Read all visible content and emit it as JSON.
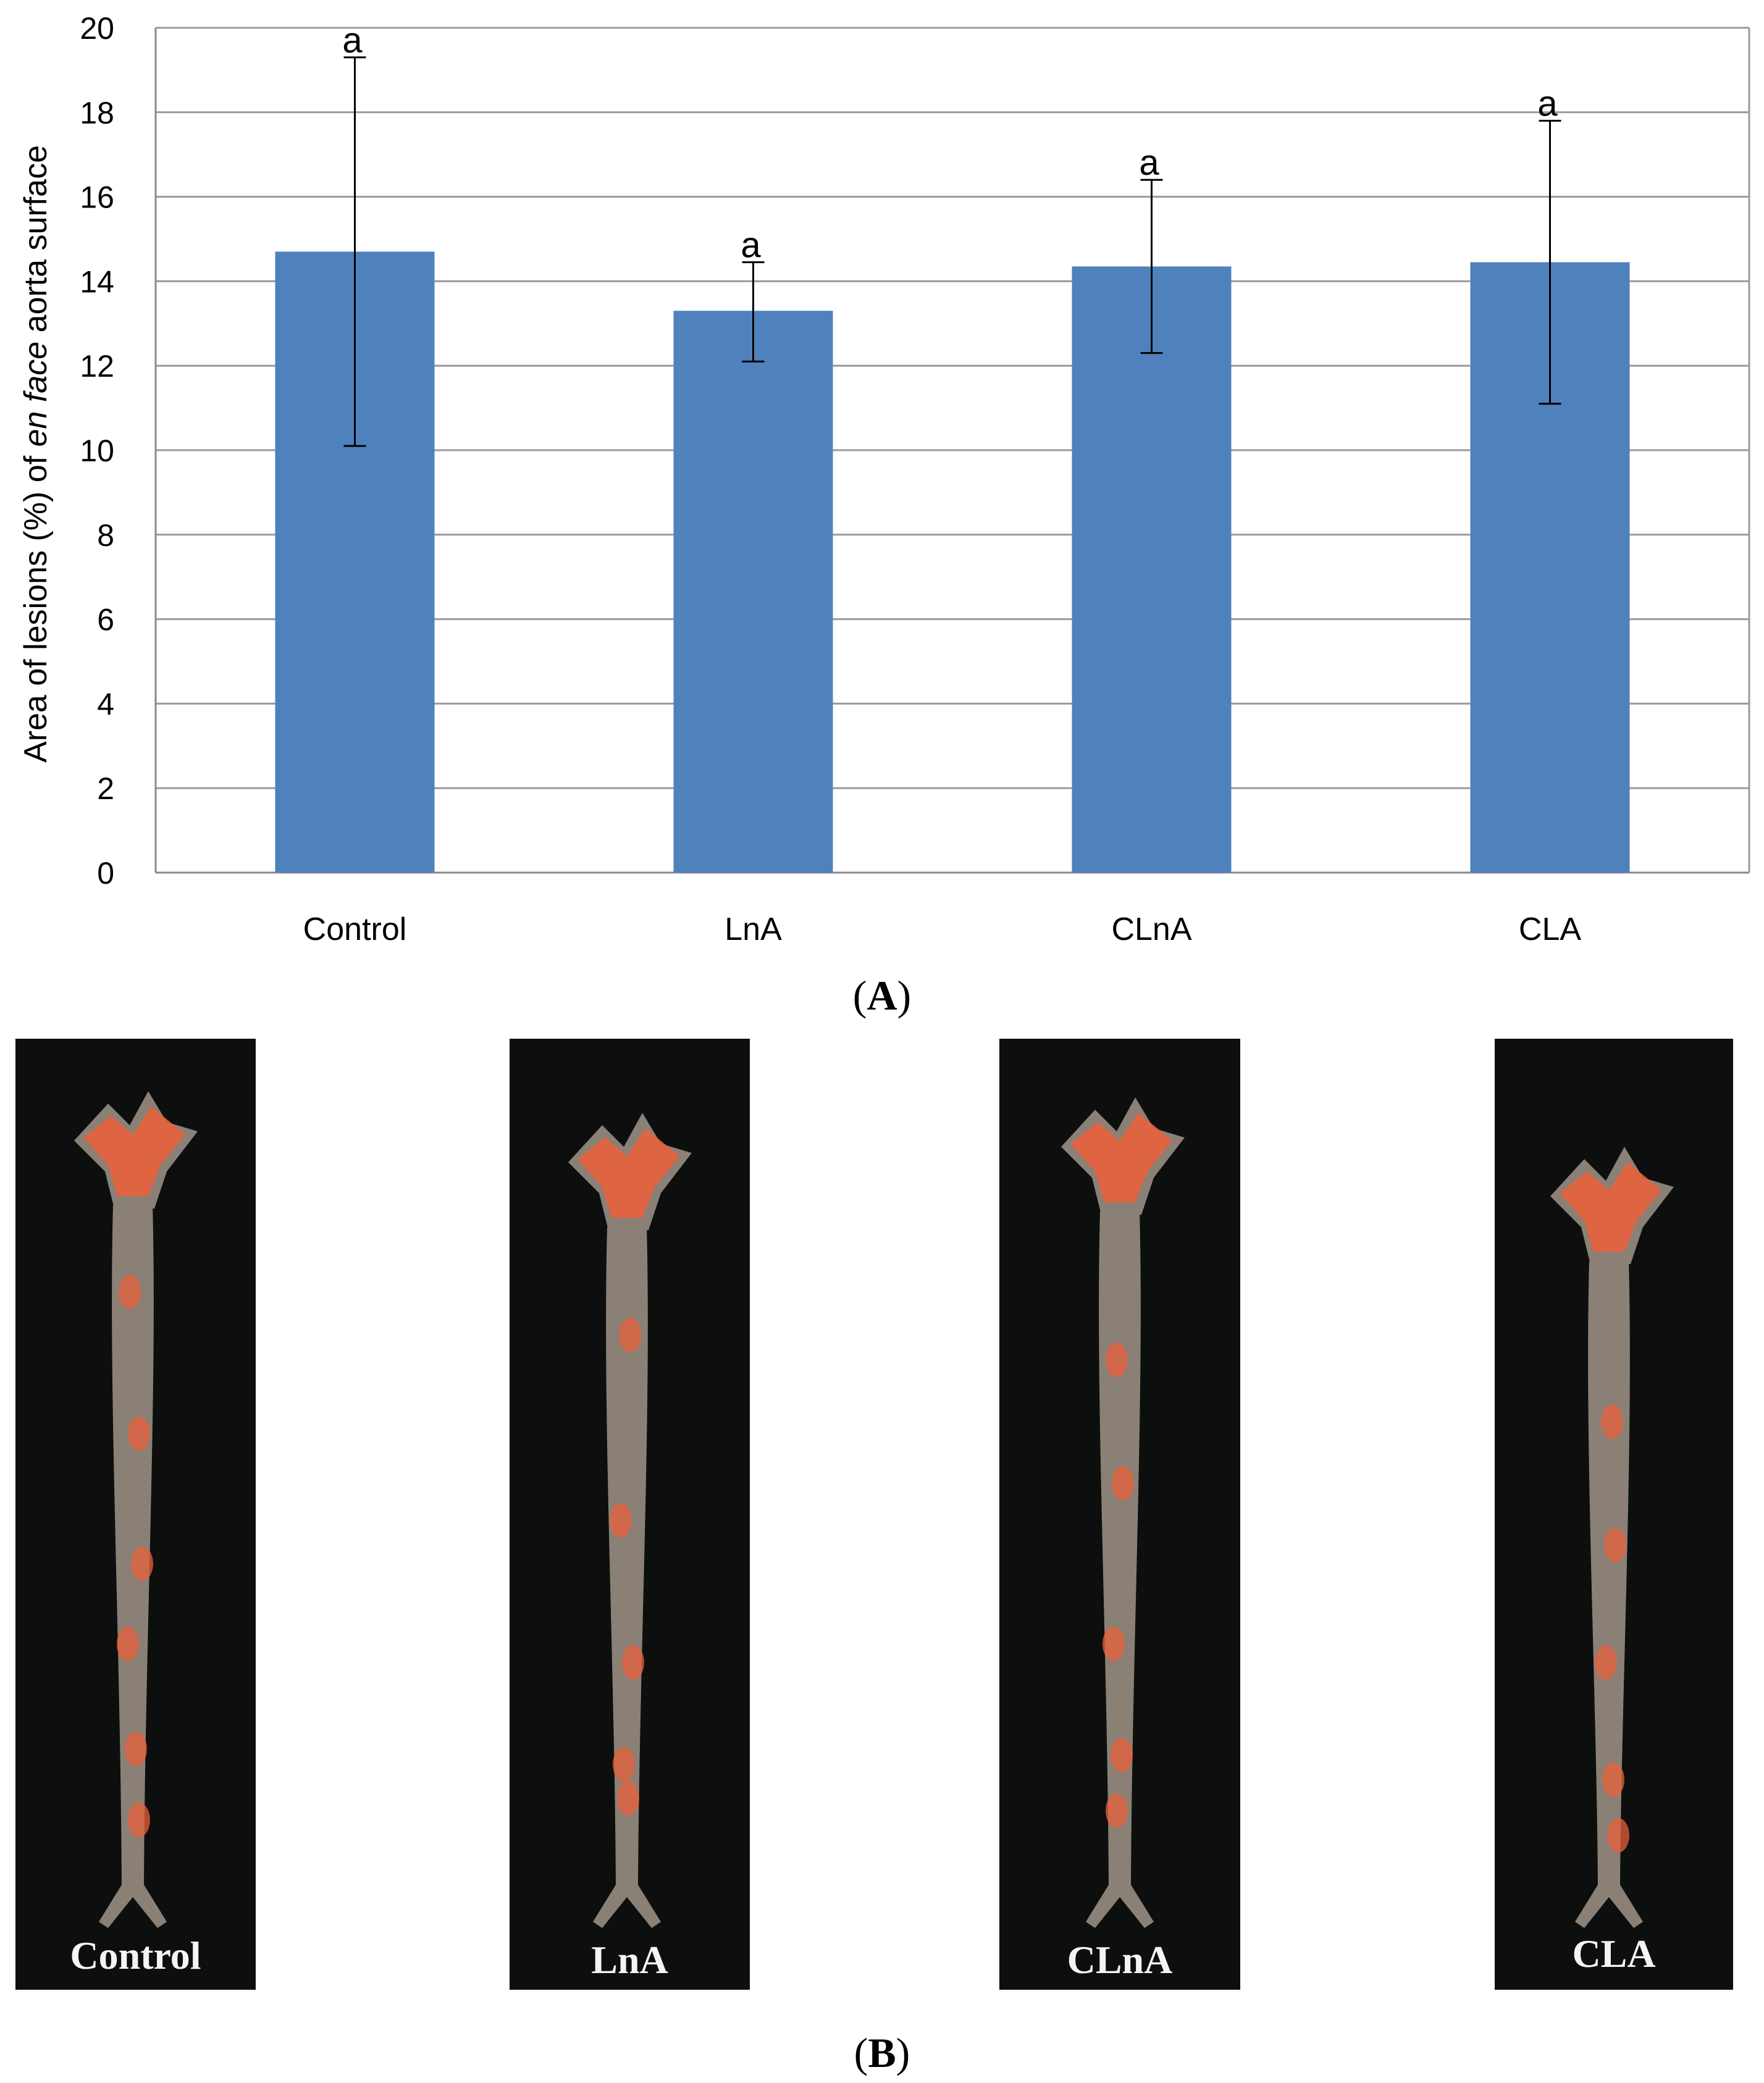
{
  "chart_data": {
    "type": "bar",
    "categories": [
      "Control",
      "LnA",
      "CLnA",
      "CLA"
    ],
    "values": [
      14.7,
      13.3,
      14.35,
      14.45
    ],
    "error_upper": [
      19.3,
      14.45,
      16.4,
      17.8
    ],
    "error_lower": [
      10.1,
      12.1,
      12.3,
      11.1
    ],
    "significance_letters": [
      "a",
      "a",
      "a",
      "a"
    ],
    "ylabel_parts": [
      "Area of lesions (%) of ",
      "en face",
      " aorta surface"
    ],
    "xlabel": "",
    "ylim": [
      0,
      20
    ],
    "yticks": [
      0,
      2,
      4,
      6,
      8,
      10,
      12,
      14,
      16,
      18,
      20
    ],
    "grid": true,
    "bar_color": "#4f81bd"
  },
  "panels": {
    "a_label": "A",
    "b_label": "B"
  },
  "aorta_images": [
    {
      "label": "Control",
      "background": "#0c0f0d"
    },
    {
      "label": "LnA",
      "background": "#0c0f0d"
    },
    {
      "label": "CLnA",
      "background": "#0c0f0d"
    },
    {
      "label": "CLA",
      "background": "#0c0f0d"
    }
  ],
  "colors": {
    "aorta_tissue": "#8a8076",
    "lesion": "#e8603c",
    "gridline": "#9a9a9a"
  }
}
